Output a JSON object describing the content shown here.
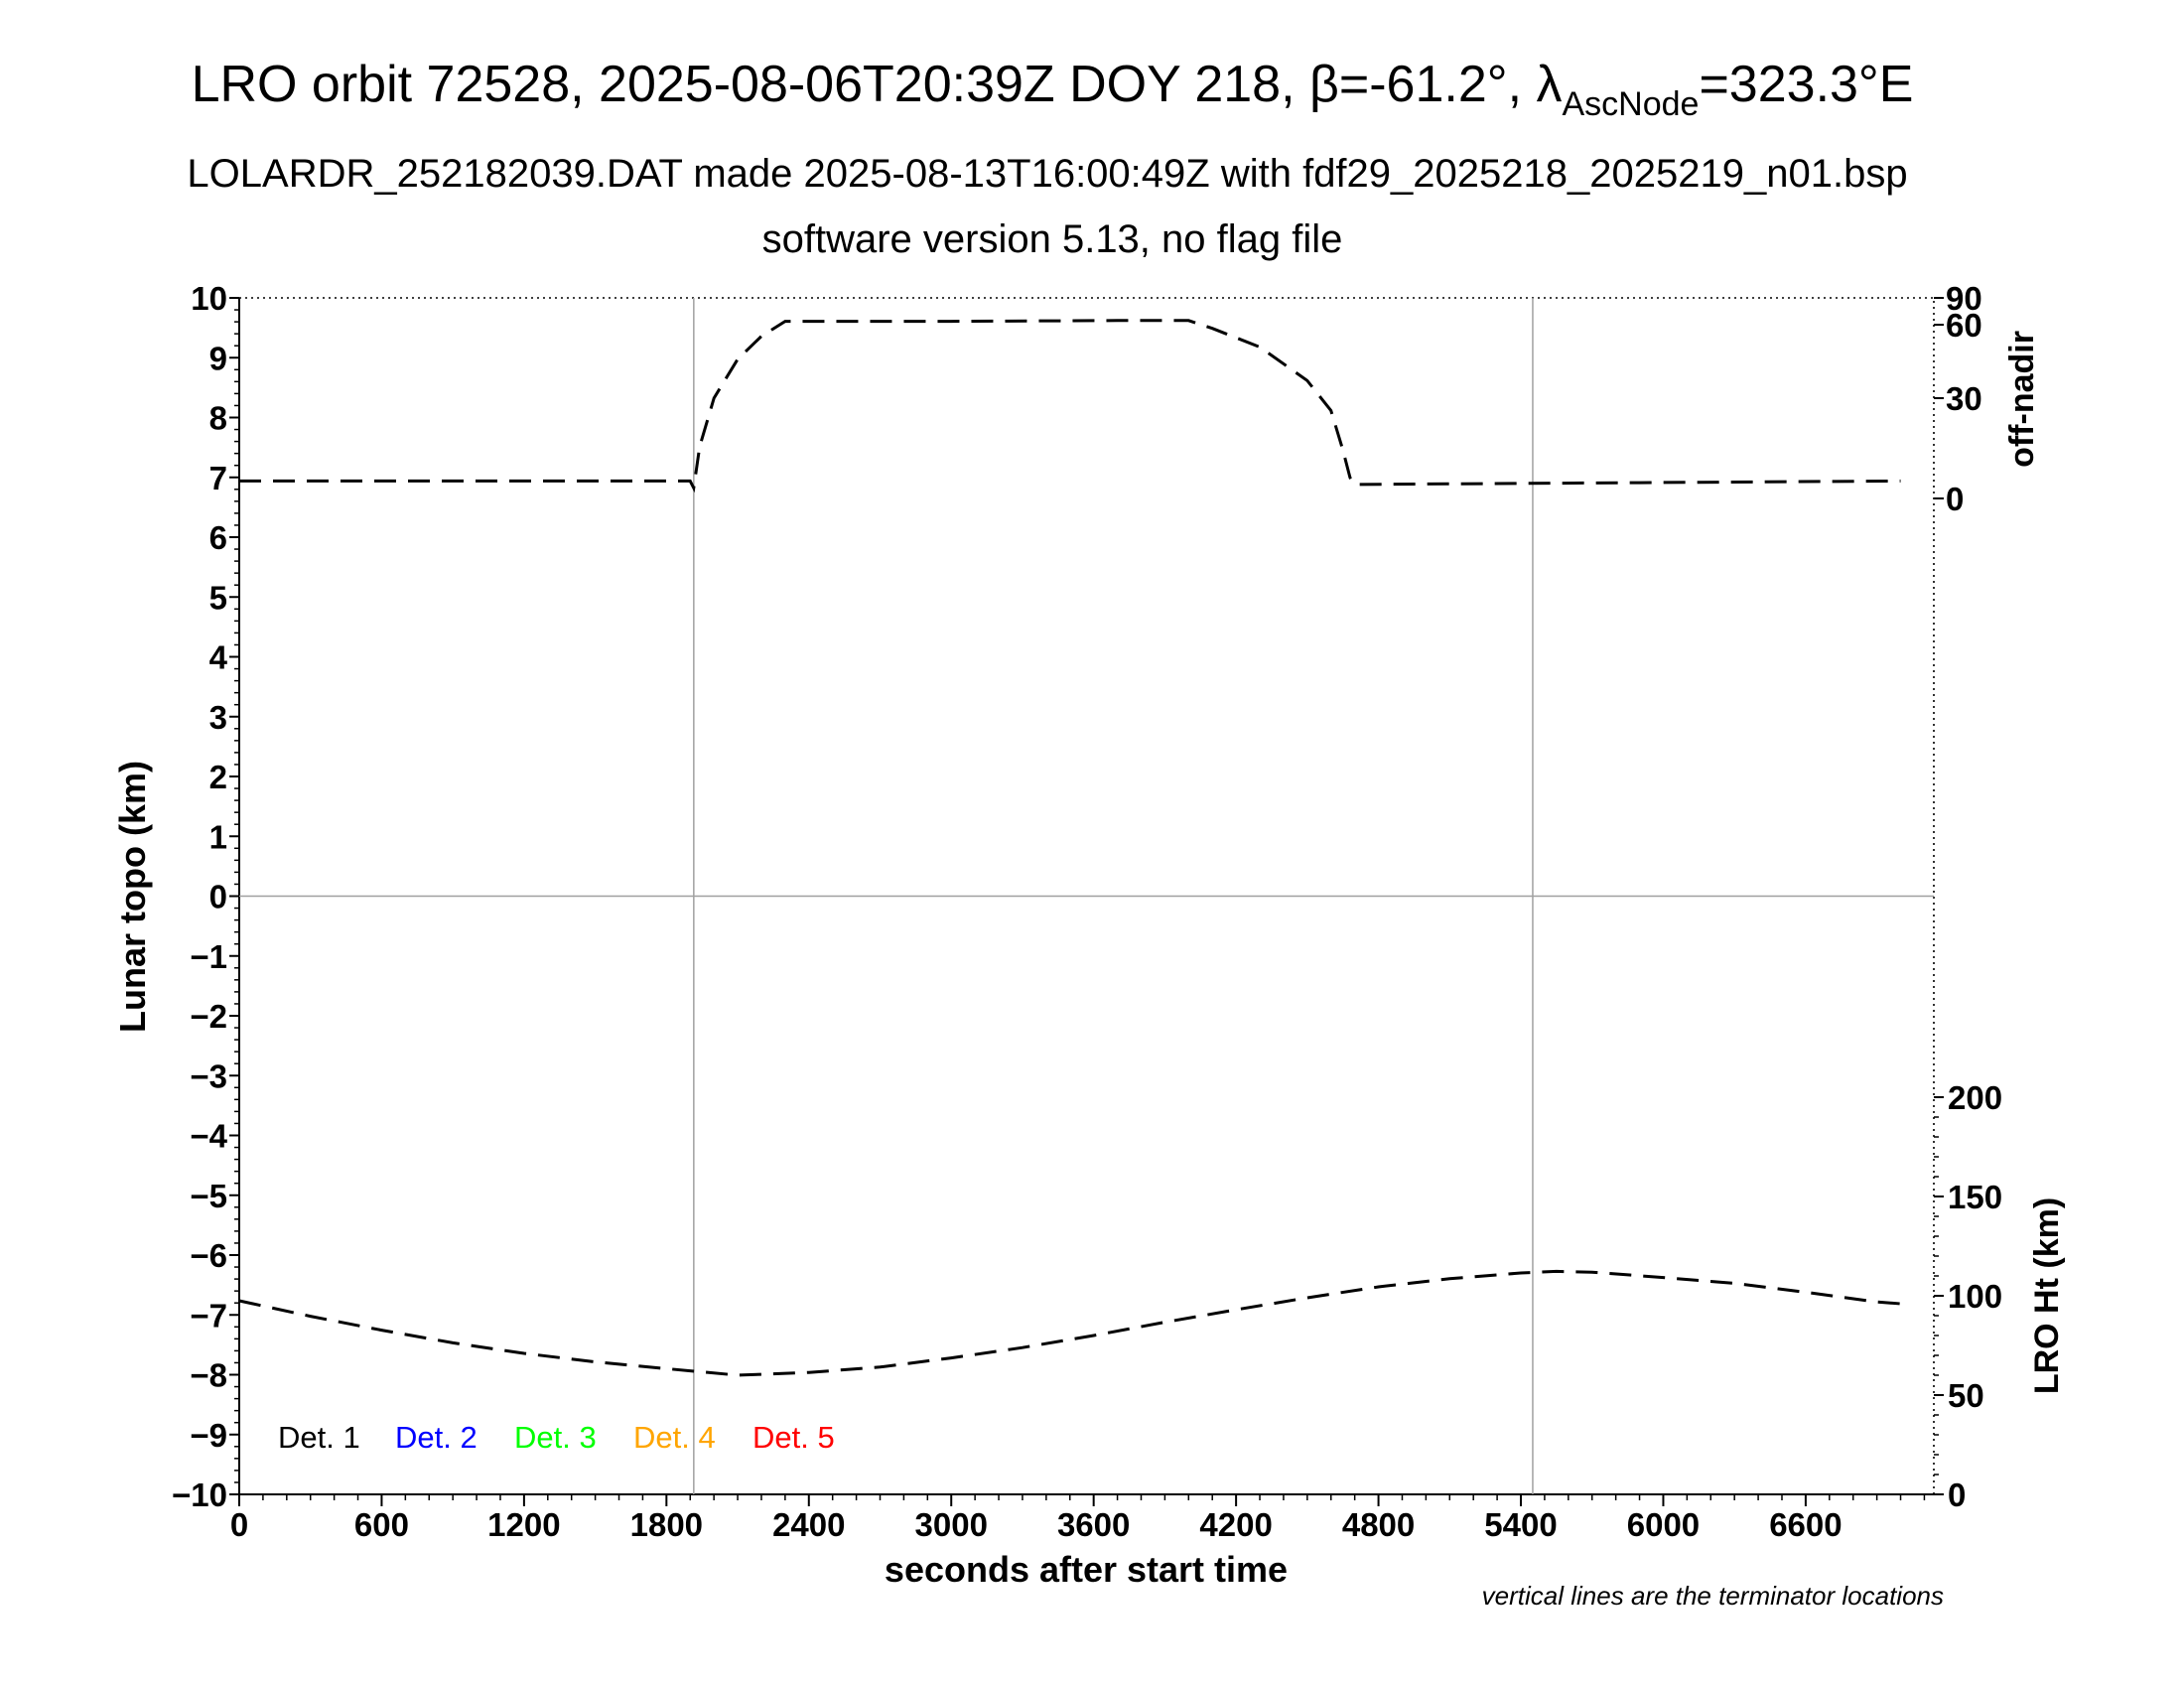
{
  "title_main": "LRO orbit 72528, 2025-08-06T20:39Z DOY 218, β=-61.2°, λ",
  "title_sub": "AscNode",
  "title_tail": "=323.3°E",
  "subtitle_1": "LOLARDR_252182039.DAT made 2025-08-13T16:00:49Z with fdf29_2025218_2025219_n01.bsp",
  "subtitle_2": "software version 5.13, no flag file",
  "footnote": "vertical lines are the terminator locations",
  "legend": [
    {
      "label": "Det. 1",
      "color": "#000000"
    },
    {
      "label": "Det. 2",
      "color": "#0000ff"
    },
    {
      "label": "Det. 3",
      "color": "#00ff00"
    },
    {
      "label": "Det. 4",
      "color": "#ffa500"
    },
    {
      "label": "Det. 5",
      "color": "#ff0000"
    }
  ],
  "chart_data": {
    "type": "line",
    "xlabel": "seconds after start time",
    "ylabel": "Lunar topo (km)",
    "xlim": [
      0,
      7140
    ],
    "ylim": [
      -10,
      10
    ],
    "xticks": [
      0,
      600,
      1200,
      1800,
      2400,
      3000,
      3600,
      4200,
      4800,
      5400,
      6000,
      6600
    ],
    "yticks": [
      10,
      9,
      8,
      7,
      6,
      5,
      4,
      3,
      2,
      1,
      0,
      -1,
      -2,
      -3,
      -4,
      -5,
      -6,
      -7,
      -8,
      -9,
      -10
    ],
    "ytick_labels": [
      "10",
      "9",
      "8",
      "7",
      "6",
      "5",
      "4",
      "3",
      "2",
      "1",
      "0",
      "−1",
      "−2",
      "−3",
      "−4",
      "−5",
      "−6",
      "−7",
      "−8",
      "−9",
      "−10"
    ],
    "grid_zero_line": true,
    "terminator_x": [
      1915,
      5450
    ],
    "right_axis_top": {
      "label": "off-nadir",
      "ticks": [
        0,
        30,
        60,
        90
      ],
      "range": [
        0,
        90
      ]
    },
    "right_axis_bottom": {
      "label": "LRO Ht (km)",
      "ticks": [
        0,
        50,
        100,
        150,
        200
      ],
      "range": [
        0,
        200
      ]
    },
    "series": [
      {
        "axis": "off-nadir",
        "line_style": "dashed",
        "color": "#000000",
        "x": [
          0,
          1900,
          1915,
          1940,
          2000,
          2100,
          2200,
          2300,
          3000,
          3700,
          4000,
          4100,
          4300,
          4500,
          4600,
          4650,
          4680,
          4700,
          7000
        ],
        "y": [
          5,
          5,
          3,
          15,
          30,
          44,
          54,
          62,
          62,
          62.5,
          62.5,
          58,
          49,
          36,
          26,
          14,
          6,
          4,
          5
        ]
      },
      {
        "axis": "LRO Ht (km)",
        "line_style": "dashed",
        "color": "#000000",
        "x": [
          0,
          300,
          600,
          900,
          1200,
          1500,
          1800,
          2100,
          2400,
          2700,
          3000,
          3300,
          3600,
          3900,
          4200,
          4500,
          4800,
          5100,
          5400,
          5550,
          5700,
          6000,
          6300,
          6600,
          6900,
          7000
        ],
        "y": [
          97.5,
          89.7,
          82.7,
          76.3,
          71,
          66.7,
          63.3,
          60,
          61.4,
          64.1,
          68.7,
          73.9,
          80,
          86.7,
          93,
          99,
          104.5,
          108.6,
          111.5,
          112.3,
          111.9,
          109.2,
          106.3,
          101.8,
          96.9,
          96
        ]
      }
    ]
  }
}
